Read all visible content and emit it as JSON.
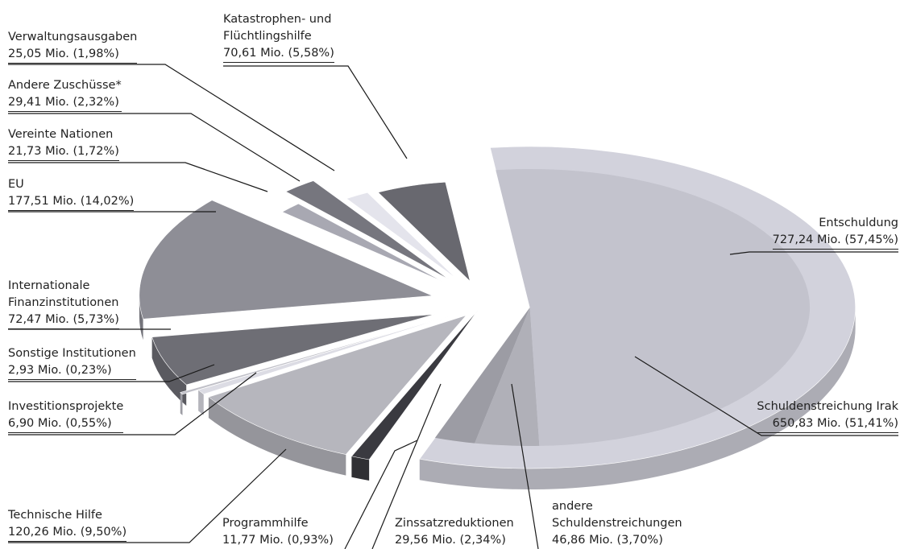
{
  "chart_data": {
    "type": "pie",
    "title": "",
    "slices": [
      {
        "name": "Entschuldung",
        "value": "727,24 Mio. (57,45%)",
        "mio": 727.24,
        "percent": 57.45,
        "color": "#d2d2dc",
        "children": [
          {
            "name": "Schuldenstreichung Irak",
            "value": "650,83 Mio. (51,41%)",
            "mio": 650.83,
            "percent": 51.41,
            "color": "#c3c3cd"
          },
          {
            "name": "andere Schuldenstreichungen",
            "value": "46,86 Mio. (3,70%)",
            "mio": 46.86,
            "percent": 3.7,
            "color": "#b0b0b8"
          },
          {
            "name": "Zinssatzreduktionen",
            "value": "29,56 Mio. (2,34%)",
            "mio": 29.56,
            "percent": 2.34,
            "color": "#9c9ca4"
          }
        ]
      },
      {
        "name": "Programmhilfe",
        "value": "11,77 Mio. (0,93%)",
        "mio": 11.77,
        "percent": 0.93,
        "color": "#3a3a40"
      },
      {
        "name": "Technische Hilfe",
        "value": "120,26 Mio. (9,50%)",
        "mio": 120.26,
        "percent": 9.5,
        "color": "#b6b6bd"
      },
      {
        "name": "Investitionsprojekte",
        "value": "6,90 Mio. (0,55%)",
        "mio": 6.9,
        "percent": 0.55,
        "color": "#dcdce4"
      },
      {
        "name": "Sonstige Institutionen",
        "value": "2,93 Mio. (0,23%)",
        "mio": 2.93,
        "percent": 0.23,
        "color": "#c0c0c8"
      },
      {
        "name": "Internationale Finanzinstitutionen",
        "value": "72,47 Mio. (5,73%)",
        "mio": 72.47,
        "percent": 5.73,
        "color": "#6e6e75"
      },
      {
        "name": "EU",
        "value": "177,51 Mio. (14,02%)",
        "mio": 177.51,
        "percent": 14.02,
        "color": "#8e8e96"
      },
      {
        "name": "Vereinte Nationen",
        "value": "21,73 Mio. (1,72%)",
        "mio": 21.73,
        "percent": 1.72,
        "color": "#a8a8b2"
      },
      {
        "name": "Andere Zuschüsse*",
        "value": "29,41 Mio. (2,32%)",
        "mio": 29.41,
        "percent": 2.32,
        "color": "#76767e"
      },
      {
        "name": "Verwaltungsausgaben",
        "value": "25,05 Mio. (1,98%)",
        "mio": 25.05,
        "percent": 1.98,
        "color": "#e4e4ec"
      },
      {
        "name": "Katastrophen- und Flüchtlingshilfe",
        "value": "70,61 Mio. (5,58%)",
        "mio": 70.61,
        "percent": 5.58,
        "color": "#68686f"
      }
    ]
  },
  "labels": {
    "verwaltung": {
      "l1": "Verwaltungsausgaben",
      "l2": "25,05 Mio. (1,98%)"
    },
    "katastrophe": {
      "l1": "Katastrophen- und",
      "l2": "Flüchtlingshilfe",
      "l3": "70,61 Mio. (5,58%)"
    },
    "zuschuesse": {
      "l1": "Andere Zuschüsse*",
      "l2": "29,41 Mio. (2,32%)"
    },
    "un": {
      "l1": "Vereinte Nationen",
      "l2": "21,73 Mio. (1,72%)"
    },
    "eu": {
      "l1": "EU",
      "l2": "177,51 Mio. (14,02%)"
    },
    "entschuldung": {
      "l1": "Entschuldung",
      "l2": "727,24 Mio. (57,45%)"
    },
    "ifi": {
      "l1": "Internationale",
      "l2": "Finanzinstitutionen",
      "l3": "72,47 Mio. (5,73%)"
    },
    "sonstige": {
      "l1": "Sonstige Institutionen",
      "l2": "2,93 Mio. (0,23%)"
    },
    "invest": {
      "l1": "Investitionsprojekte",
      "l2": "6,90 Mio. (0,55%)"
    },
    "irak": {
      "l1": "Schuldenstreichung Irak",
      "l2": "650,83 Mio. (51,41%)"
    },
    "technisch": {
      "l1": "Technische Hilfe",
      "l2": "120,26 Mio. (9,50%)"
    },
    "programm": {
      "l1": "Programmhilfe",
      "l2": "11,77 Mio. (0,93%)"
    },
    "zins": {
      "l1": "Zinssatzreduktionen",
      "l2": "29,56 Mio. (2,34%)"
    },
    "andere": {
      "l1": "andere",
      "l2": "Schuldenstreichungen",
      "l3": "46,86 Mio. (3,70%)"
    }
  }
}
